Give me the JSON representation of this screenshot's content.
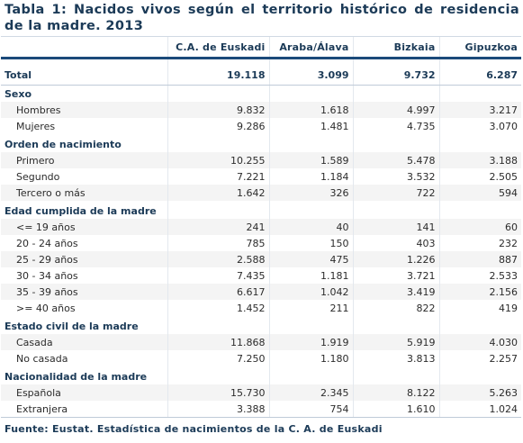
{
  "title": "Tabla 1: Nacidos vivos según el territorio histórico de residencia de la madre. 2013",
  "columns": [
    "",
    "C.A. de Euskadi",
    "Araba/Álava",
    "Bizkaia",
    "Gipuzkoa"
  ],
  "total": {
    "label": "Total",
    "values": [
      "19.118",
      "3.099",
      "9.732",
      "6.287"
    ]
  },
  "sections": [
    {
      "name": "Sexo",
      "rows": [
        {
          "label": "Hombres",
          "values": [
            "9.832",
            "1.618",
            "4.997",
            "3.217"
          ]
        },
        {
          "label": "Mujeres",
          "values": [
            "9.286",
            "1.481",
            "4.735",
            "3.070"
          ]
        }
      ]
    },
    {
      "name": "Orden de nacimiento",
      "rows": [
        {
          "label": "Primero",
          "values": [
            "10.255",
            "1.589",
            "5.478",
            "3.188"
          ]
        },
        {
          "label": "Segundo",
          "values": [
            "7.221",
            "1.184",
            "3.532",
            "2.505"
          ]
        },
        {
          "label": "Tercero o más",
          "values": [
            "1.642",
            "326",
            "722",
            "594"
          ]
        }
      ]
    },
    {
      "name": "Edad cumplida de la madre",
      "rows": [
        {
          "label": "<= 19 años",
          "values": [
            "241",
            "40",
            "141",
            "60"
          ]
        },
        {
          "label": "20 - 24 años",
          "values": [
            "785",
            "150",
            "403",
            "232"
          ]
        },
        {
          "label": "25 - 29 años",
          "values": [
            "2.588",
            "475",
            "1.226",
            "887"
          ]
        },
        {
          "label": "30 - 34 años",
          "values": [
            "7.435",
            "1.181",
            "3.721",
            "2.533"
          ]
        },
        {
          "label": "35 - 39 años",
          "values": [
            "6.617",
            "1.042",
            "3.419",
            "2.156"
          ]
        },
        {
          "label": ">= 40 años",
          "values": [
            "1.452",
            "211",
            "822",
            "419"
          ]
        }
      ]
    },
    {
      "name": "Estado civil de la madre",
      "rows": [
        {
          "label": "Casada",
          "values": [
            "11.868",
            "1.919",
            "5.919",
            "4.030"
          ]
        },
        {
          "label": "No casada",
          "values": [
            "7.250",
            "1.180",
            "3.813",
            "2.257"
          ]
        }
      ]
    },
    {
      "name": "Nacionalidad de la madre",
      "rows": [
        {
          "label": "Española",
          "values": [
            "15.730",
            "2.345",
            "8.122",
            "5.263"
          ]
        },
        {
          "label": "Extranjera",
          "values": [
            "3.388",
            "754",
            "1.610",
            "1.024"
          ]
        }
      ]
    }
  ],
  "footer": "Fuente: Eustat. Estadística de nacimientos de la C. A. de Euskadi",
  "colors": {
    "heading": "#1b3a57",
    "rule": "#1b4a7a",
    "zebra": "#f4f4f4"
  }
}
